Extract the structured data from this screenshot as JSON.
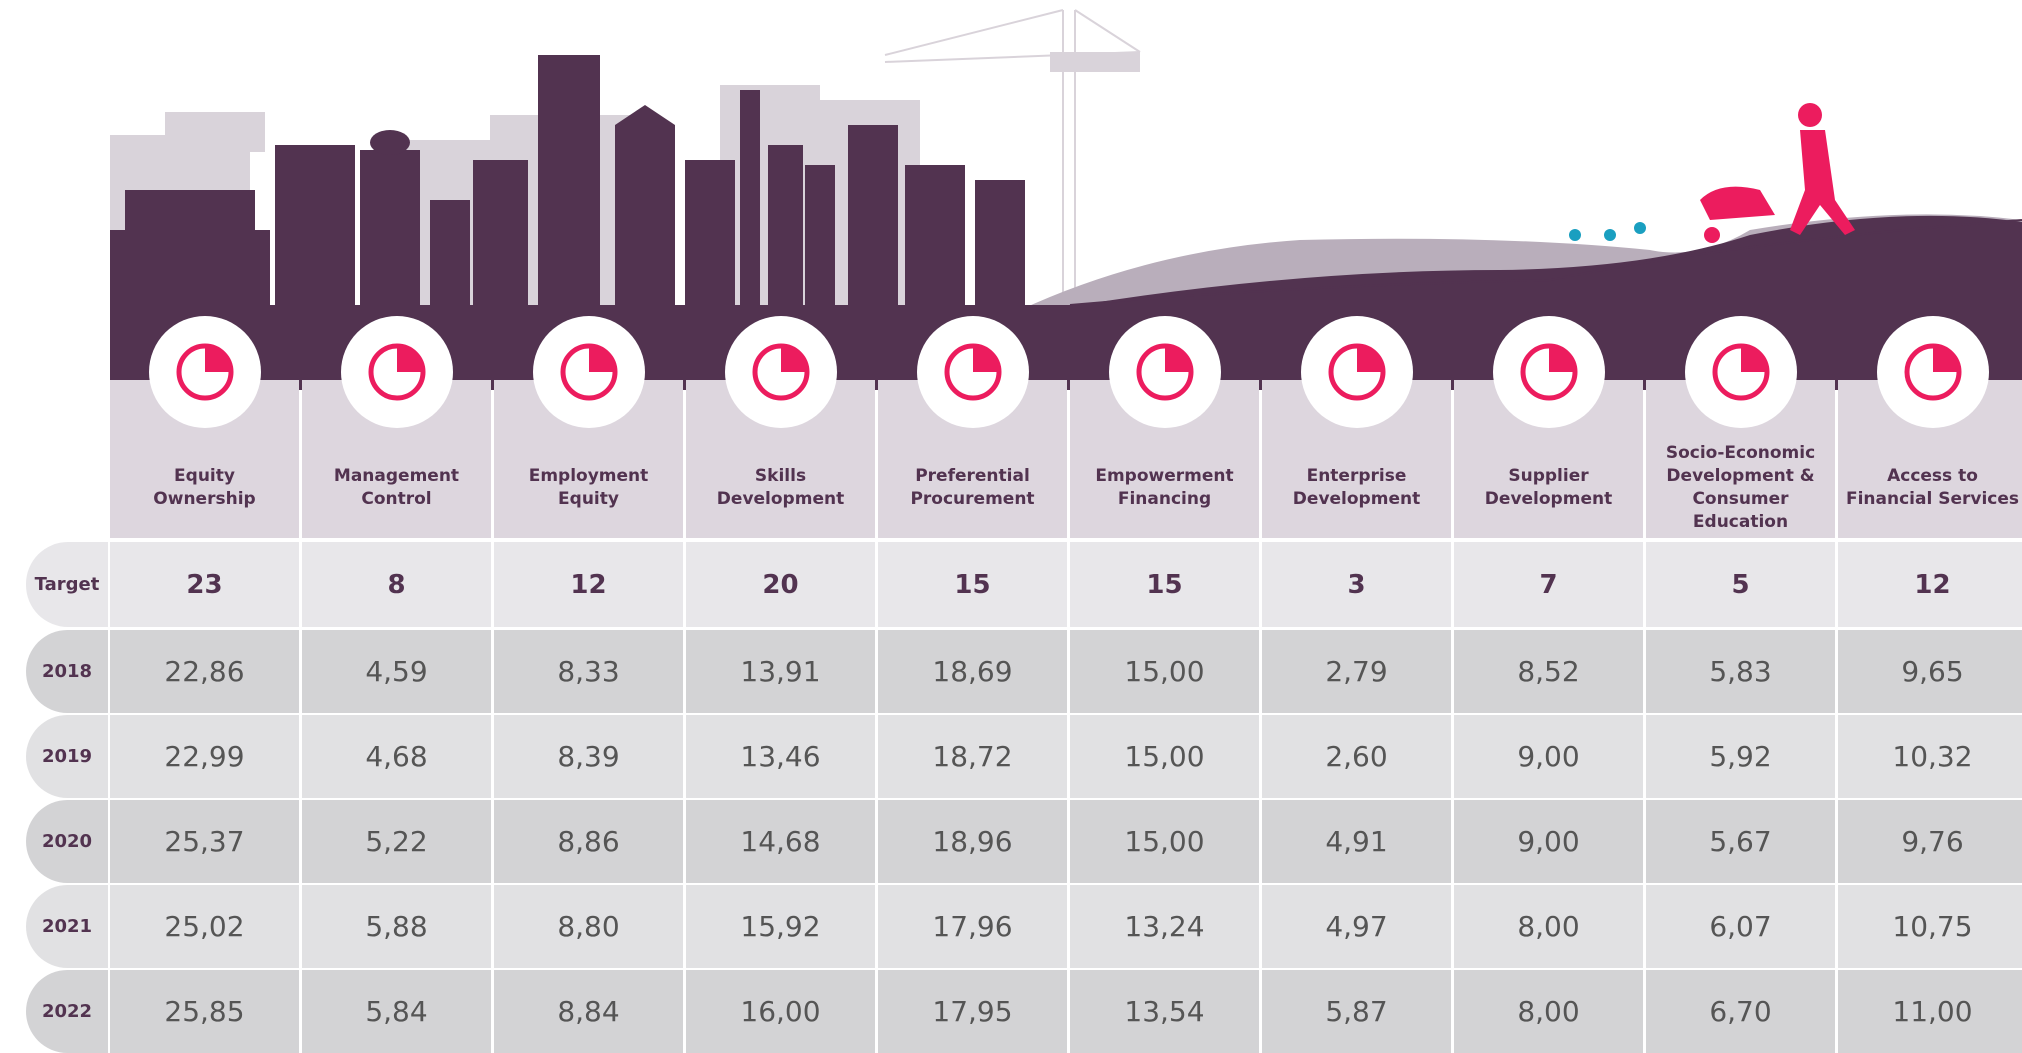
{
  "columns": [
    {
      "lines": [
        "Equity",
        "Ownership"
      ]
    },
    {
      "lines": [
        "Management",
        "Control"
      ]
    },
    {
      "lines": [
        "Employment",
        "Equity"
      ]
    },
    {
      "lines": [
        "Skills",
        "Development"
      ]
    },
    {
      "lines": [
        "Preferential",
        "Procurement"
      ]
    },
    {
      "lines": [
        "Empowerment",
        "Financing"
      ]
    },
    {
      "lines": [
        "Enterprise",
        "Development"
      ]
    },
    {
      "lines": [
        "Supplier",
        "Development"
      ]
    },
    {
      "lines": [
        "Socio-Economic",
        "Development &",
        "Consumer Education"
      ]
    },
    {
      "lines": [
        "Access to",
        "Financial Services"
      ]
    }
  ],
  "rows": [
    {
      "label": "Target",
      "values": [
        "23",
        "8",
        "12",
        "20",
        "15",
        "15",
        "3",
        "7",
        "5",
        "12"
      ]
    },
    {
      "label": "2018",
      "values": [
        "22,86",
        "4,59",
        "8,33",
        "13,91",
        "18,69",
        "15,00",
        "2,79",
        "8,52",
        "5,83",
        "9,65"
      ]
    },
    {
      "label": "2019",
      "values": [
        "22,99",
        "4,68",
        "8,39",
        "13,46",
        "18,72",
        "15,00",
        "2,60",
        "9,00",
        "5,92",
        "10,32"
      ]
    },
    {
      "label": "2020",
      "values": [
        "25,37",
        "5,22",
        "8,86",
        "14,68",
        "18,96",
        "15,00",
        "4,91",
        "9,00",
        "5,67",
        "9,76"
      ]
    },
    {
      "label": "2021",
      "values": [
        "25,02",
        "5,88",
        "8,80",
        "15,92",
        "17,96",
        "13,24",
        "4,97",
        "8,00",
        "6,07",
        "10,75"
      ]
    },
    {
      "label": "2022",
      "values": [
        "25,85",
        "5,84",
        "8,84",
        "16,00",
        "17,95",
        "13,54",
        "5,87",
        "8,00",
        "6,70",
        "11,00"
      ]
    }
  ]
}
